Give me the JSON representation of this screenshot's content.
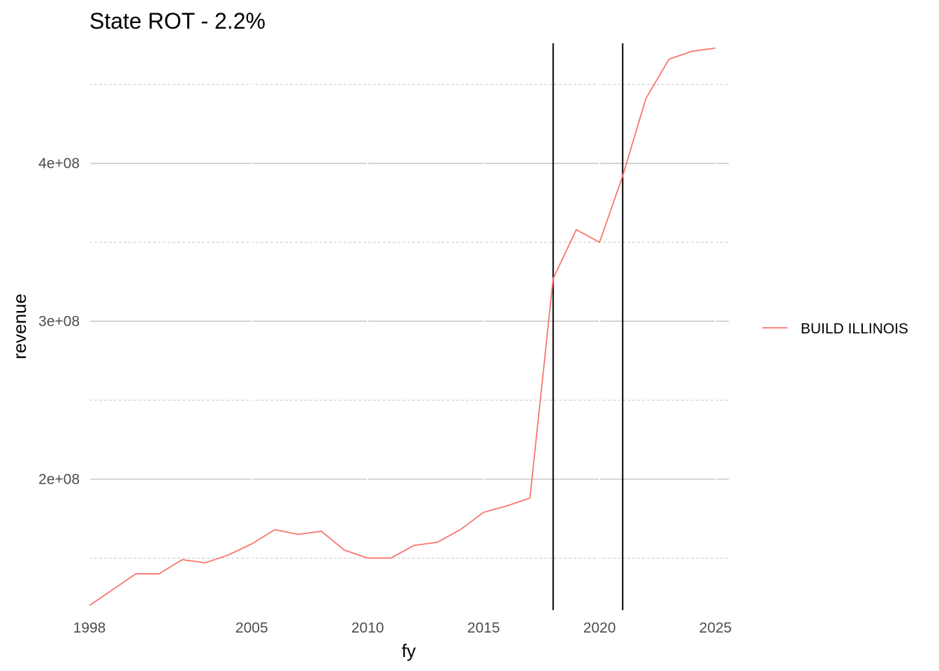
{
  "chart_data": {
    "type": "line",
    "title": "State ROT - 2.2%",
    "xlabel": "fy",
    "ylabel": "revenue",
    "xlim": [
      1998,
      2025
    ],
    "ylim": [
      117000000,
      476000000
    ],
    "x_ticks": [
      1998,
      2005,
      2010,
      2015,
      2020,
      2025
    ],
    "x_tick_labels": [
      "1998",
      "2005",
      "2010",
      "2015",
      "2020",
      "2025"
    ],
    "y_ticks": [
      200000000,
      300000000,
      400000000
    ],
    "y_tick_labels": [
      "2e+08",
      "3e+08",
      "4e+08"
    ],
    "y_minor_ticks": [
      150000000,
      250000000,
      350000000,
      450000000
    ],
    "vlines": [
      2018,
      2021
    ],
    "grid": true,
    "legend_position": "right",
    "series": [
      {
        "name": "BUILD ILLINOIS",
        "color": "#F8766D",
        "x": [
          1998,
          1999,
          2000,
          2001,
          2002,
          2003,
          2004,
          2005,
          2006,
          2007,
          2008,
          2009,
          2010,
          2011,
          2012,
          2013,
          2014,
          2015,
          2016,
          2017,
          2018,
          2019,
          2020,
          2021,
          2022,
          2023,
          2024,
          2025
        ],
        "values": [
          120000000,
          130000000,
          140000000,
          140000000,
          149000000,
          147000000,
          152000000,
          159000000,
          168000000,
          165000000,
          167000000,
          155000000,
          150000000,
          150000000,
          158000000,
          160000000,
          168000000,
          179000000,
          183000000,
          188000000,
          327000000,
          358000000,
          350000000,
          392000000,
          441000000,
          466000000,
          471000000,
          473000000
        ]
      }
    ]
  }
}
